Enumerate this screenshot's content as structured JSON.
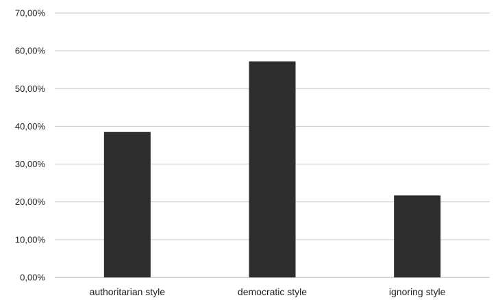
{
  "chart_data": {
    "type": "bar",
    "categories": [
      "authoritarian style",
      "democratic style",
      "ignoring style"
    ],
    "values": [
      38.5,
      57.2,
      21.7
    ],
    "ylim": [
      0,
      70
    ],
    "y_ticks": [
      "0,00%",
      "10,00%",
      "20,00%",
      "30,00%",
      "40,00%",
      "50,00%",
      "60,00%",
      "70,00%"
    ],
    "y_tick_values": [
      0,
      10,
      20,
      30,
      40,
      50,
      60,
      70
    ],
    "grid": true,
    "legend": "none",
    "title": "",
    "xlabel": "",
    "ylabel": "",
    "colors": {
      "bar": "#2d2d2d",
      "grid": "#c9c9c9"
    }
  }
}
